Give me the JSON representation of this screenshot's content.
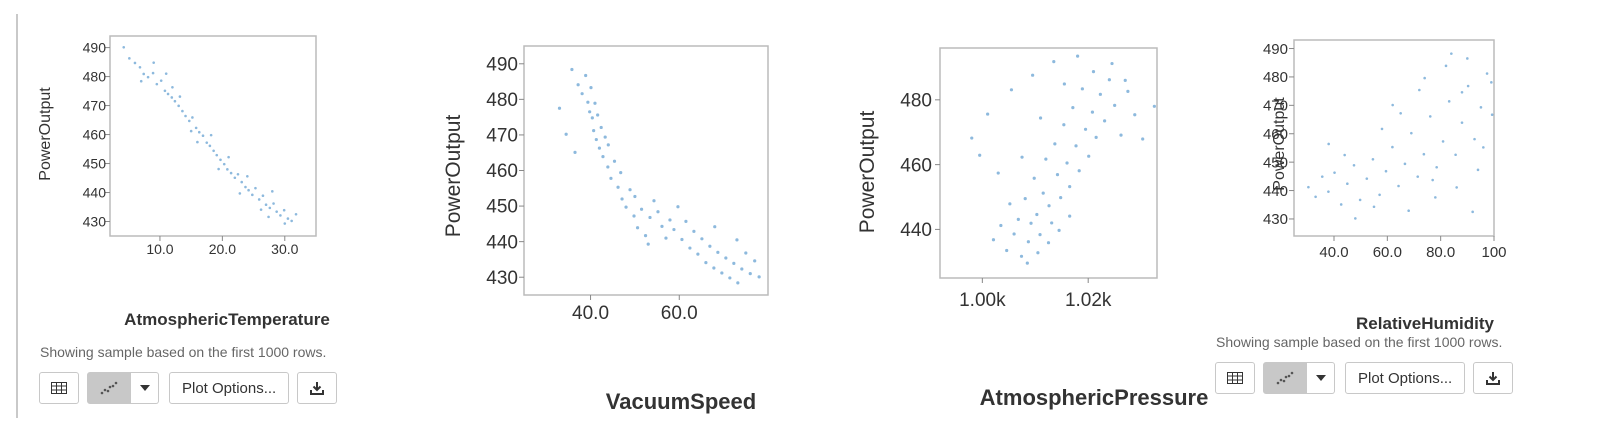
{
  "colors": {
    "point": "#2f7fc1",
    "axis": "#888888",
    "frame": "#bbbbbb"
  },
  "notes": {
    "sample": "Showing sample based on the first 1000 rows."
  },
  "toolbar": {
    "table_icon": "table-icon",
    "scatter_icon": "scatter-icon",
    "dropdown_icon": "chevron-down-icon",
    "plot_options_label": "Plot Options...",
    "download_icon": "download-icon"
  },
  "chart_data": [
    {
      "type": "scatter",
      "xlabel": "AtmosphericTemperature",
      "ylabel": "PowerOutput",
      "xlim": [
        2,
        35
      ],
      "ylim": [
        425,
        494
      ],
      "xticks": [
        10,
        20,
        30
      ],
      "xtick_labels": [
        "10.0",
        "20.0",
        "30.0"
      ],
      "yticks": [
        430,
        440,
        450,
        460,
        470,
        480,
        490
      ],
      "ytick_labels": [
        "430",
        "440",
        "450",
        "460",
        "470",
        "480",
        "490"
      ],
      "points": [
        [
          4.2,
          490.1
        ],
        [
          5.1,
          486.3
        ],
        [
          6.0,
          484.7
        ],
        [
          6.8,
          483.2
        ],
        [
          7.4,
          480.9
        ],
        [
          8.1,
          479.8
        ],
        [
          8.9,
          481.2
        ],
        [
          9.5,
          477.4
        ],
        [
          10.2,
          478.6
        ],
        [
          10.8,
          475.1
        ],
        [
          11.3,
          474.0
        ],
        [
          11.9,
          472.8
        ],
        [
          12.4,
          471.5
        ],
        [
          13.0,
          469.9
        ],
        [
          13.6,
          468.1
        ],
        [
          14.1,
          466.4
        ],
        [
          14.7,
          464.7
        ],
        [
          15.2,
          465.9
        ],
        [
          15.8,
          462.3
        ],
        [
          16.3,
          460.8
        ],
        [
          16.9,
          459.6
        ],
        [
          17.5,
          457.2
        ],
        [
          18.0,
          456.1
        ],
        [
          18.6,
          454.4
        ],
        [
          19.1,
          452.9
        ],
        [
          19.7,
          451.3
        ],
        [
          20.3,
          449.8
        ],
        [
          20.8,
          448.0
        ],
        [
          21.4,
          446.7
        ],
        [
          22.0,
          445.1
        ],
        [
          22.5,
          446.3
        ],
        [
          23.1,
          443.6
        ],
        [
          23.7,
          441.9
        ],
        [
          24.2,
          440.8
        ],
        [
          24.8,
          439.2
        ],
        [
          25.3,
          441.5
        ],
        [
          25.9,
          437.6
        ],
        [
          26.5,
          438.9
        ],
        [
          27.0,
          435.8
        ],
        [
          27.6,
          434.7
        ],
        [
          28.2,
          436.2
        ],
        [
          28.7,
          433.4
        ],
        [
          29.3,
          432.1
        ],
        [
          29.9,
          433.9
        ],
        [
          30.5,
          431.0
        ],
        [
          31.1,
          430.2
        ],
        [
          31.8,
          432.5
        ],
        [
          9.0,
          484.8
        ],
        [
          12.0,
          476.3
        ],
        [
          15.0,
          461.2
        ],
        [
          18.2,
          459.8
        ],
        [
          21.0,
          452.2
        ],
        [
          24.0,
          445.6
        ],
        [
          26.2,
          434.1
        ],
        [
          28.0,
          440.4
        ],
        [
          30.0,
          429.3
        ],
        [
          13.2,
          473.1
        ],
        [
          16.0,
          457.4
        ],
        [
          19.4,
          448.1
        ],
        [
          22.8,
          439.7
        ],
        [
          27.4,
          431.6
        ],
        [
          7.0,
          478.4
        ],
        [
          11.0,
          481.0
        ]
      ]
    },
    {
      "type": "scatter",
      "xlabel": "VacuumSpeed",
      "ylabel": "PowerOutput",
      "xlim": [
        25,
        80
      ],
      "ylim": [
        425,
        495
      ],
      "xticks": [
        40,
        60
      ],
      "xtick_labels": [
        "40.0",
        "60.0"
      ],
      "yticks": [
        430,
        440,
        450,
        460,
        470,
        480,
        490
      ],
      "ytick_labels": [
        "430",
        "440",
        "450",
        "460",
        "470",
        "480",
        "490"
      ],
      "points": [
        [
          35.8,
          488.4
        ],
        [
          37.2,
          484.1
        ],
        [
          38.1,
          481.6
        ],
        [
          38.9,
          486.7
        ],
        [
          39.4,
          479.2
        ],
        [
          39.8,
          476.5
        ],
        [
          40.1,
          483.3
        ],
        [
          40.4,
          474.8
        ],
        [
          40.7,
          471.2
        ],
        [
          41.0,
          478.9
        ],
        [
          41.3,
          468.7
        ],
        [
          41.6,
          475.6
        ],
        [
          42.0,
          466.3
        ],
        [
          42.4,
          472.1
        ],
        [
          42.8,
          463.9
        ],
        [
          43.3,
          469.4
        ],
        [
          43.9,
          461.0
        ],
        [
          44.6,
          457.8
        ],
        [
          45.4,
          462.6
        ],
        [
          46.2,
          455.3
        ],
        [
          47.1,
          452.0
        ],
        [
          48.0,
          449.7
        ],
        [
          48.9,
          454.6
        ],
        [
          49.8,
          447.2
        ],
        [
          50.6,
          443.9
        ],
        [
          51.5,
          449.1
        ],
        [
          52.4,
          441.7
        ],
        [
          53.4,
          446.8
        ],
        [
          54.3,
          451.5
        ],
        [
          55.2,
          448.4
        ],
        [
          56.1,
          444.3
        ],
        [
          57.0,
          441.0
        ],
        [
          57.9,
          446.1
        ],
        [
          58.8,
          443.4
        ],
        [
          59.7,
          449.8
        ],
        [
          60.6,
          440.6
        ],
        [
          61.5,
          445.7
        ],
        [
          62.4,
          438.2
        ],
        [
          63.3,
          442.9
        ],
        [
          64.2,
          436.5
        ],
        [
          65.1,
          440.8
        ],
        [
          66.0,
          434.1
        ],
        [
          66.9,
          438.7
        ],
        [
          67.8,
          432.6
        ],
        [
          68.7,
          437.0
        ],
        [
          69.6,
          431.2
        ],
        [
          70.5,
          435.4
        ],
        [
          71.4,
          429.8
        ],
        [
          72.3,
          433.9
        ],
        [
          73.2,
          428.4
        ],
        [
          74.1,
          432.3
        ],
        [
          75.0,
          436.8
        ],
        [
          76.0,
          431.0
        ],
        [
          77.0,
          434.6
        ],
        [
          78.0,
          430.1
        ],
        [
          33.0,
          477.5
        ],
        [
          34.5,
          470.2
        ],
        [
          36.5,
          465.1
        ],
        [
          44.0,
          467.2
        ],
        [
          46.8,
          459.4
        ],
        [
          50.0,
          452.7
        ],
        [
          53.0,
          439.3
        ],
        [
          68.0,
          444.2
        ],
        [
          73.0,
          440.5
        ]
      ]
    },
    {
      "type": "scatter",
      "xlabel": "AtmosphericPressure",
      "ylabel": "PowerOutput",
      "xlim": [
        992,
        1033
      ],
      "ylim": [
        425,
        496
      ],
      "xticks": [
        1000,
        1020
      ],
      "xtick_labels": [
        "1.00k",
        "1.02k"
      ],
      "yticks": [
        440,
        460,
        480
      ],
      "ytick_labels": [
        "440",
        "460",
        "480"
      ],
      "points": [
        [
          1002.1,
          436.8
        ],
        [
          1003.5,
          441.2
        ],
        [
          1004.6,
          433.5
        ],
        [
          1005.2,
          447.9
        ],
        [
          1006.0,
          438.6
        ],
        [
          1006.8,
          443.1
        ],
        [
          1007.4,
          431.7
        ],
        [
          1008.1,
          449.5
        ],
        [
          1008.7,
          436.2
        ],
        [
          1009.2,
          441.9
        ],
        [
          1009.8,
          455.8
        ],
        [
          1010.3,
          444.6
        ],
        [
          1010.9,
          438.4
        ],
        [
          1011.5,
          451.2
        ],
        [
          1012.0,
          461.7
        ],
        [
          1012.6,
          447.3
        ],
        [
          1013.1,
          442.0
        ],
        [
          1013.7,
          466.4
        ],
        [
          1014.2,
          456.9
        ],
        [
          1014.8,
          449.8
        ],
        [
          1015.4,
          472.3
        ],
        [
          1016.0,
          460.5
        ],
        [
          1016.5,
          453.2
        ],
        [
          1017.1,
          477.6
        ],
        [
          1017.7,
          465.8
        ],
        [
          1018.3,
          458.1
        ],
        [
          1018.9,
          483.4
        ],
        [
          1019.5,
          470.9
        ],
        [
          1020.1,
          462.6
        ],
        [
          1020.8,
          476.2
        ],
        [
          1021.5,
          468.4
        ],
        [
          1022.3,
          481.7
        ],
        [
          1023.1,
          473.5
        ],
        [
          1024.0,
          486.2
        ],
        [
          1025.0,
          478.3
        ],
        [
          1026.2,
          469.1
        ],
        [
          1027.5,
          482.6
        ],
        [
          1028.8,
          475.4
        ],
        [
          1030.3,
          467.9
        ],
        [
          1032.5,
          478.0
        ],
        [
          998.0,
          468.2
        ],
        [
          999.5,
          462.9
        ],
        [
          1001.0,
          475.6
        ],
        [
          1003.0,
          457.4
        ],
        [
          1005.5,
          483.1
        ],
        [
          1007.5,
          462.3
        ],
        [
          1009.5,
          487.6
        ],
        [
          1011.0,
          474.4
        ],
        [
          1013.5,
          491.8
        ],
        [
          1015.5,
          484.9
        ],
        [
          1018.0,
          493.5
        ],
        [
          1021.0,
          488.7
        ],
        [
          1024.5,
          491.2
        ],
        [
          1027.0,
          486.0
        ],
        [
          1008.5,
          429.6
        ],
        [
          1010.5,
          432.8
        ],
        [
          1012.5,
          435.9
        ],
        [
          1014.5,
          439.7
        ],
        [
          1016.5,
          444.1
        ]
      ]
    },
    {
      "type": "scatter",
      "xlabel": "RelativeHumidity",
      "ylabel": "PowerOutput",
      "xlim": [
        25,
        100
      ],
      "ylim": [
        424,
        493
      ],
      "xticks": [
        40,
        60,
        80,
        100
      ],
      "xtick_labels": [
        "40.0",
        "60.0",
        "80.0",
        "100"
      ],
      "yticks": [
        430,
        440,
        450,
        460,
        470,
        480,
        490
      ],
      "ytick_labels": [
        "430",
        "440",
        "450",
        "460",
        "470",
        "480",
        "490"
      ],
      "points": [
        [
          30.4,
          441.2
        ],
        [
          33.1,
          437.8
        ],
        [
          35.6,
          444.9
        ],
        [
          37.9,
          439.6
        ],
        [
          40.2,
          446.3
        ],
        [
          42.7,
          435.1
        ],
        [
          45.0,
          442.4
        ],
        [
          47.5,
          448.9
        ],
        [
          49.8,
          436.7
        ],
        [
          52.3,
          444.2
        ],
        [
          54.6,
          451.0
        ],
        [
          57.1,
          438.5
        ],
        [
          59.5,
          446.8
        ],
        [
          61.9,
          455.3
        ],
        [
          64.2,
          441.6
        ],
        [
          66.6,
          449.4
        ],
        [
          69.0,
          460.2
        ],
        [
          71.4,
          444.9
        ],
        [
          73.7,
          452.8
        ],
        [
          76.1,
          466.1
        ],
        [
          78.5,
          448.2
        ],
        [
          80.9,
          457.3
        ],
        [
          83.2,
          471.4
        ],
        [
          85.6,
          452.6
        ],
        [
          88.0,
          463.9
        ],
        [
          90.3,
          476.8
        ],
        [
          92.7,
          458.1
        ],
        [
          95.1,
          469.3
        ],
        [
          97.4,
          481.2
        ],
        [
          99.3,
          466.7
        ],
        [
          38.0,
          456.4
        ],
        [
          48.0,
          430.2
        ],
        [
          58.0,
          461.7
        ],
        [
          68.0,
          432.9
        ],
        [
          72.0,
          475.4
        ],
        [
          78.0,
          437.6
        ],
        [
          82.0,
          483.9
        ],
        [
          86.0,
          441.1
        ],
        [
          90.0,
          486.5
        ],
        [
          94.0,
          447.3
        ],
        [
          62.0,
          470.1
        ],
        [
          74.0,
          479.6
        ],
        [
          84.0,
          488.2
        ],
        [
          96.0,
          455.2
        ],
        [
          44.0,
          452.5
        ],
        [
          55.0,
          434.3
        ],
        [
          65.0,
          467.2
        ],
        [
          77.0,
          443.7
        ],
        [
          88.0,
          474.6
        ],
        [
          92.0,
          432.5
        ],
        [
          99.0,
          478.1
        ]
      ]
    }
  ]
}
